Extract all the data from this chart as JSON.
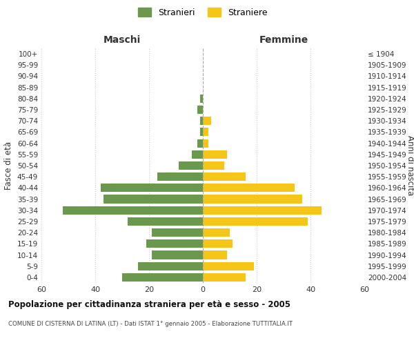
{
  "age_groups": [
    "0-4",
    "5-9",
    "10-14",
    "15-19",
    "20-24",
    "25-29",
    "30-34",
    "35-39",
    "40-44",
    "45-49",
    "50-54",
    "55-59",
    "60-64",
    "65-69",
    "70-74",
    "75-79",
    "80-84",
    "85-89",
    "90-94",
    "95-99",
    "100+"
  ],
  "birth_years": [
    "2000-2004",
    "1995-1999",
    "1990-1994",
    "1985-1989",
    "1980-1984",
    "1975-1979",
    "1970-1974",
    "1965-1969",
    "1960-1964",
    "1955-1959",
    "1950-1954",
    "1945-1949",
    "1940-1944",
    "1935-1939",
    "1930-1934",
    "1925-1929",
    "1920-1924",
    "1915-1919",
    "1910-1914",
    "1905-1909",
    "≤ 1904"
  ],
  "males": [
    30,
    24,
    19,
    21,
    19,
    28,
    52,
    37,
    38,
    17,
    9,
    4,
    2,
    1,
    1,
    2,
    1,
    0,
    0,
    0,
    0
  ],
  "females": [
    16,
    19,
    9,
    11,
    10,
    39,
    44,
    37,
    34,
    16,
    8,
    9,
    2,
    2,
    3,
    0,
    0,
    0,
    0,
    0,
    0
  ],
  "male_color": "#6a994e",
  "female_color": "#f5c518",
  "male_label": "Stranieri",
  "female_label": "Straniere",
  "title": "Popolazione per cittadinanza straniera per età e sesso - 2005",
  "subtitle": "COMUNE DI CISTERNA DI LATINA (LT) - Dati ISTAT 1° gennaio 2005 - Elaborazione TUTTITALIA.IT",
  "xlabel_left": "Maschi",
  "xlabel_right": "Femmine",
  "ylabel_left": "Fasce di età",
  "ylabel_right": "Anni di nascita",
  "xlim": 60,
  "background_color": "#ffffff",
  "grid_color": "#cccccc"
}
